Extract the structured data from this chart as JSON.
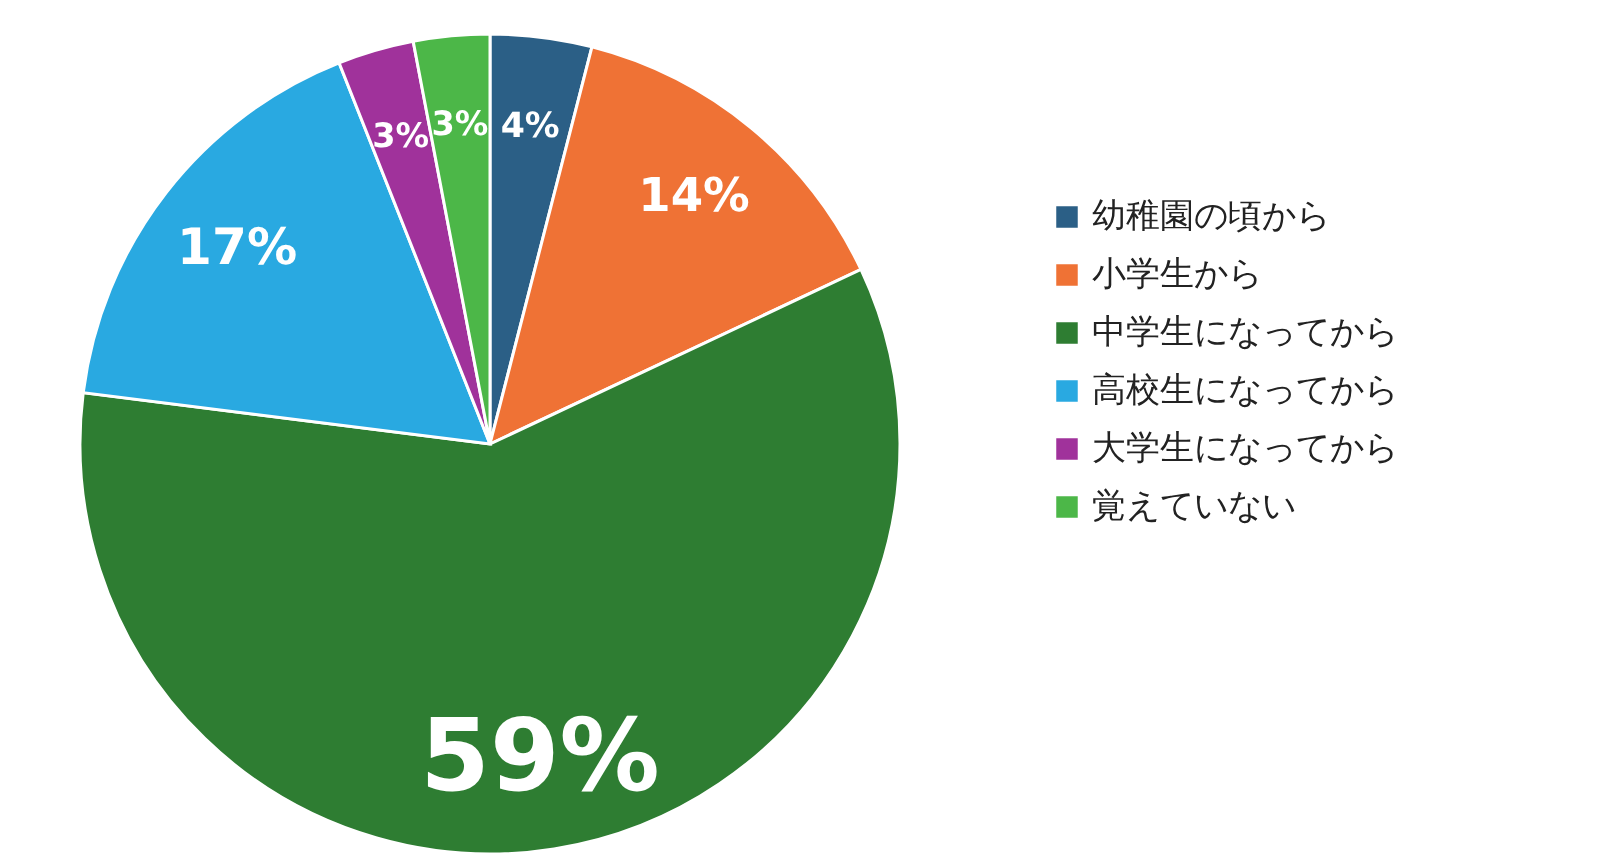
{
  "chart_data": {
    "type": "pie",
    "categories": [
      "幼稚園の頃から",
      "小学生から",
      "中学生になってから",
      "高校生になってから",
      "大学生になってから",
      "覚えていない"
    ],
    "values": [
      4,
      14,
      59,
      17,
      3,
      3
    ],
    "value_labels": [
      "4%",
      "14%",
      "59%",
      "17%",
      "3%",
      "3%"
    ],
    "colors": [
      "#2b5f86",
      "#ef7235",
      "#2e7d32",
      "#29a9e1",
      "#a0329b",
      "#4cb748"
    ],
    "legend": "right"
  }
}
